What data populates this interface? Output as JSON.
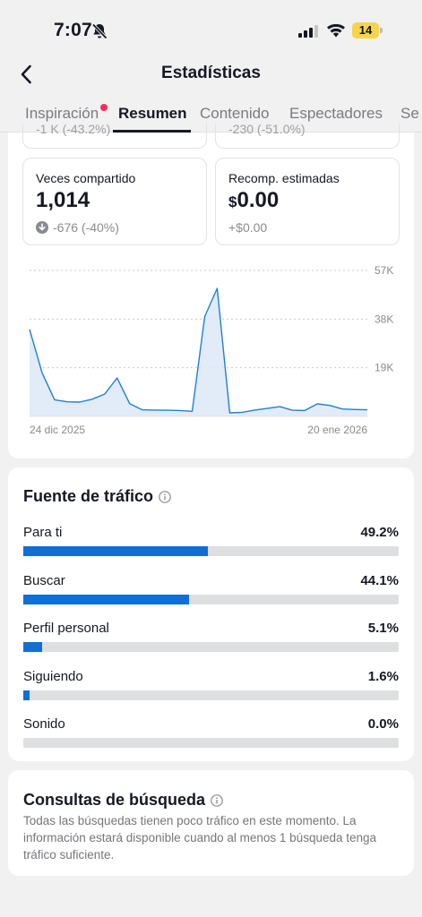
{
  "status": {
    "time": "7:07",
    "battery": "14"
  },
  "nav": {
    "title": "Estadísticas"
  },
  "tabs": [
    {
      "label": "Inspiración",
      "has_dot": true
    },
    {
      "label": "Resumen",
      "active": true
    },
    {
      "label": "Contenido"
    },
    {
      "label": "Espectadores"
    },
    {
      "label": "Se"
    }
  ],
  "partial_stats": {
    "left": "-1 K (-43.2%)",
    "right": "-230 (-51.0%)"
  },
  "stats": [
    {
      "label": "Veces compartido",
      "value": "1,014",
      "change": "-676 (-40%)",
      "trend_icon": "arrow-down-circle-icon"
    },
    {
      "label": "Recomp. estimadas",
      "currency": "$",
      "value": "0.00",
      "change": "+$0.00"
    }
  ],
  "chart_data": {
    "type": "area",
    "x_start_label": "24 dic 2025",
    "x_end_label": "20 ene 2026",
    "y_ticks": [
      "57K",
      "38K",
      "19K"
    ],
    "ylim": [
      0,
      57000
    ],
    "values": [
      34000,
      17000,
      6500,
      5700,
      5600,
      6700,
      8700,
      15000,
      5000,
      2600,
      2500,
      2400,
      2300,
      2000,
      39000,
      50000,
      1400,
      1600,
      2500,
      3100,
      3800,
      2400,
      2300,
      4900,
      4300,
      2900,
      2700,
      2600
    ],
    "line_color": "#1f80d6",
    "fill_color": "#dce9f7",
    "grid": "dashed"
  },
  "traffic": {
    "title": "Fuente de tráfico",
    "rows": [
      {
        "name": "Para ti",
        "pct": "49.2%",
        "value": 0.492
      },
      {
        "name": "Buscar",
        "pct": "44.1%",
        "value": 0.441
      },
      {
        "name": "Perfil personal",
        "pct": "5.1%",
        "value": 0.051
      },
      {
        "name": "Siguiendo",
        "pct": "1.6%",
        "value": 0.016
      },
      {
        "name": "Sonido",
        "pct": "0.0%",
        "value": 0.0
      }
    ]
  },
  "search_queries": {
    "title": "Consultas de búsqueda",
    "description": "Todas las búsquedas tienen poco tráfico en este momento. La información estará disponible cuando al menos 1 búsqueda tenga tráfico suficiente."
  },
  "colors": {
    "accent": "#0f6fd5",
    "dot": "#fe2c55",
    "battery": "#f7d54a"
  }
}
